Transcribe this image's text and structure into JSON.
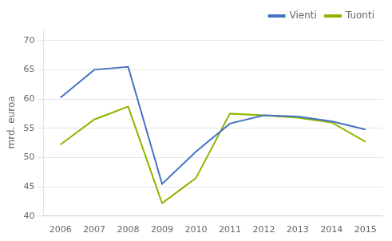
{
  "chart_data": {
    "type": "line",
    "ylabel": "mrd. euroa",
    "x": [
      2006,
      2007,
      2008,
      2009,
      2010,
      2011,
      2012,
      2013,
      2014,
      2015
    ],
    "series": [
      {
        "name": "Vienti",
        "color": "#4472c4",
        "values": [
          60.2,
          65.0,
          65.5,
          45.5,
          51.0,
          55.8,
          57.2,
          57.0,
          56.2,
          54.8
        ]
      },
      {
        "name": "Tuonti",
        "color": "#8db600",
        "values": [
          52.2,
          56.5,
          58.7,
          42.2,
          46.5,
          57.5,
          57.2,
          56.8,
          56.0,
          52.7
        ]
      }
    ],
    "xlim": [
      2005.5,
      2015.5
    ],
    "xticks": [
      2006,
      2007,
      2008,
      2009,
      2010,
      2011,
      2012,
      2013,
      2014,
      2015
    ],
    "ylim": [
      40,
      72
    ],
    "yticks": [
      40,
      45,
      50,
      55,
      60,
      65,
      70
    ],
    "grid": "y",
    "legend": "upper right"
  }
}
